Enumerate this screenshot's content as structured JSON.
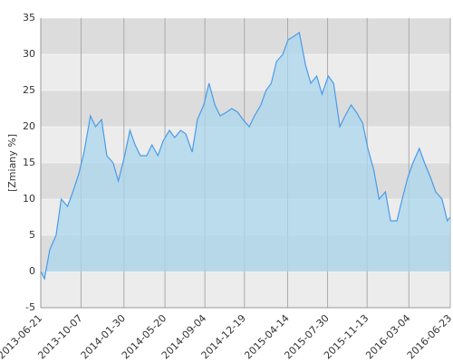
{
  "chart_data": {
    "type": "area",
    "ylabel": "[Zmiany %]",
    "x": [
      "2013-06-21",
      "2013-07-01",
      "2013-07-15",
      "2013-08-01",
      "2013-08-15",
      "2013-09-01",
      "2013-09-15",
      "2013-10-01",
      "2013-10-15",
      "2013-11-01",
      "2013-11-15",
      "2013-12-01",
      "2013-12-15",
      "2014-01-01",
      "2014-01-15",
      "2014-02-01",
      "2014-02-15",
      "2014-03-01",
      "2014-03-15",
      "2014-04-01",
      "2014-04-15",
      "2014-05-01",
      "2014-05-15",
      "2014-06-01",
      "2014-06-15",
      "2014-07-01",
      "2014-07-15",
      "2014-08-01",
      "2014-08-15",
      "2014-09-01",
      "2014-09-15",
      "2014-10-01",
      "2014-10-15",
      "2014-11-01",
      "2014-11-15",
      "2014-12-01",
      "2014-12-15",
      "2015-01-01",
      "2015-01-15",
      "2015-02-01",
      "2015-02-15",
      "2015-03-01",
      "2015-03-15",
      "2015-04-01",
      "2015-04-15",
      "2015-05-01",
      "2015-05-15",
      "2015-06-01",
      "2015-06-15",
      "2015-07-01",
      "2015-07-15",
      "2015-08-01",
      "2015-08-15",
      "2015-09-01",
      "2015-09-15",
      "2015-10-01",
      "2015-10-15",
      "2015-11-01",
      "2015-11-15",
      "2015-12-01",
      "2015-12-15",
      "2016-01-01",
      "2016-01-15",
      "2016-02-01",
      "2016-02-15",
      "2016-03-01",
      "2016-03-15",
      "2016-04-01",
      "2016-04-15",
      "2016-05-01",
      "2016-05-15",
      "2016-06-01",
      "2016-06-15",
      "2016-06-23"
    ],
    "values": [
      0,
      -1,
      3,
      5,
      10,
      9,
      11,
      13.5,
      16.5,
      21.5,
      20,
      21,
      16,
      15,
      12.5,
      16,
      19.5,
      17.5,
      16,
      16,
      17.5,
      16,
      18,
      19.5,
      18.5,
      19.5,
      19,
      16.5,
      21,
      23,
      26,
      23,
      21.5,
      22,
      22.5,
      22,
      21,
      20,
      21.5,
      23,
      25,
      26,
      29,
      30,
      32,
      32.5,
      33,
      28.5,
      26,
      27,
      24.5,
      27,
      26,
      20,
      21.5,
      23,
      22,
      20.5,
      17,
      14,
      10,
      11,
      7,
      7,
      10,
      13,
      15,
      17,
      15,
      13,
      11,
      10,
      7,
      7.5
    ],
    "color": "#4a9be8",
    "fill": "#a9d7ee",
    "xlim": [
      "2013-06-21",
      "2016-06-23"
    ],
    "xticks": [
      "2013-06-21",
      "2013-10-07",
      "2014-01-30",
      "2014-05-20",
      "2014-09-04",
      "2014-12-19",
      "2015-04-14",
      "2015-07-30",
      "2015-11-13",
      "2016-03-04",
      "2016-06-23"
    ],
    "ylim": [
      -5,
      35
    ],
    "yticks": [
      -5,
      0,
      5,
      10,
      15,
      20,
      25,
      30,
      35
    ],
    "grid": true
  }
}
